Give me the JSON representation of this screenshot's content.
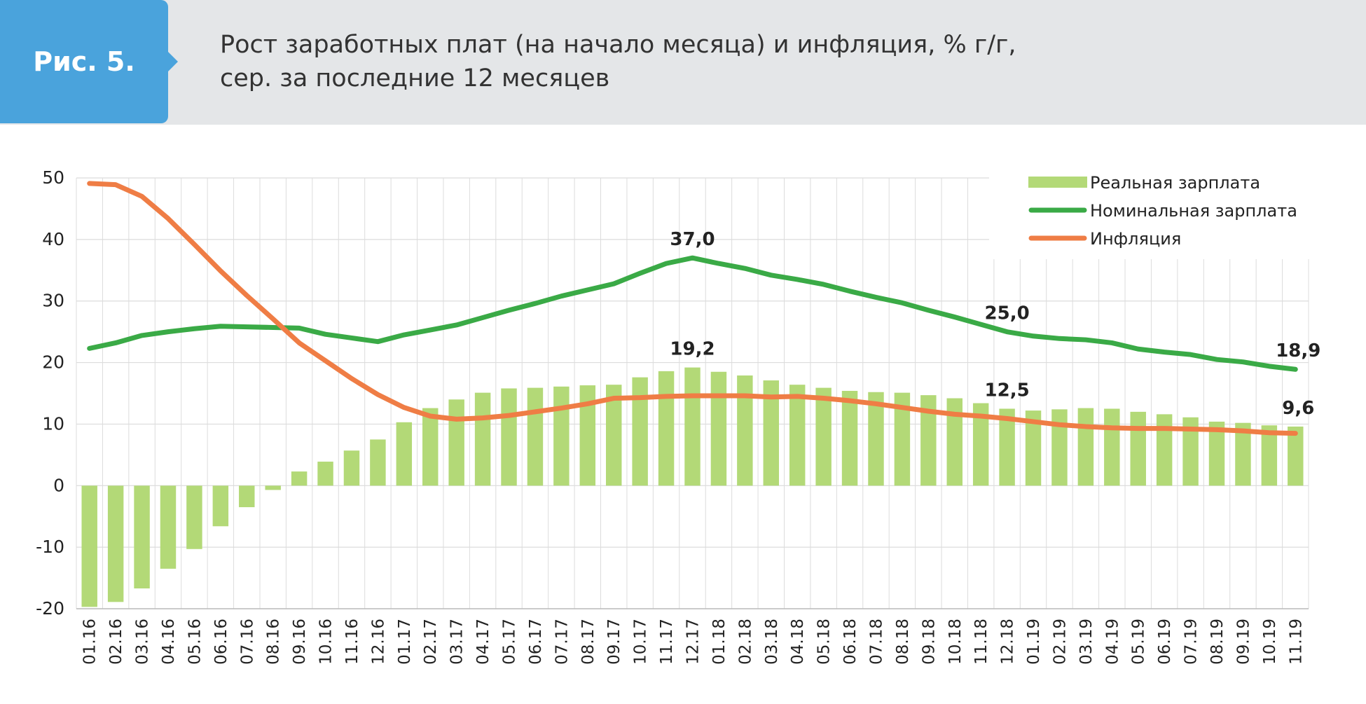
{
  "header": {
    "figure_label": "Рис. 5."
  },
  "chart_data": {
    "type": "bar-line",
    "title_lines": [
      "Рост заработных плат (на начало месяца) и инфляция, % г/г,",
      "сер. за последние 12 месяцев"
    ],
    "categories": [
      "01.16",
      "02.16",
      "03.16",
      "04.16",
      "05.16",
      "06.16",
      "07.16",
      "08.16",
      "09.16",
      "10.16",
      "11.16",
      "12.16",
      "01.17",
      "02.17",
      "03.17",
      "04.17",
      "05.17",
      "06.17",
      "07.17",
      "08.17",
      "09.17",
      "10.17",
      "11.17",
      "12.17",
      "01.18",
      "02.18",
      "03.18",
      "04.18",
      "05.18",
      "06.18",
      "07.18",
      "08.18",
      "09.18",
      "10.18",
      "11.18",
      "12.18",
      "01.19",
      "02.19",
      "03.19",
      "04.19",
      "05.19",
      "06.19",
      "07.19",
      "08.19",
      "09.19",
      "10.19",
      "11.19"
    ],
    "ylim": [
      -20,
      50
    ],
    "yticks": [
      -20,
      -10,
      0,
      10,
      20,
      30,
      40,
      50
    ],
    "grid": true,
    "legend": "top-right",
    "series": [
      {
        "name": "Реальная зарплата",
        "kind": "bar",
        "color": "#b3d977",
        "values": [
          -19.7,
          -18.9,
          -16.7,
          -13.5,
          -10.3,
          -6.6,
          -3.5,
          -0.7,
          2.3,
          3.9,
          5.7,
          7.5,
          10.3,
          12.6,
          14.0,
          15.1,
          15.8,
          15.9,
          16.1,
          16.3,
          16.4,
          17.6,
          18.6,
          19.2,
          18.5,
          17.9,
          17.1,
          16.4,
          15.9,
          15.4,
          15.2,
          15.1,
          14.7,
          14.2,
          13.4,
          12.5,
          12.2,
          12.4,
          12.6,
          12.5,
          12.0,
          11.6,
          11.1,
          10.4,
          10.2,
          9.8,
          9.6
        ],
        "value_labels": [
          null,
          null,
          null,
          null,
          null,
          null,
          null,
          null,
          null,
          null,
          null,
          null,
          null,
          null,
          null,
          null,
          null,
          null,
          null,
          null,
          null,
          null,
          null,
          "19,2",
          null,
          null,
          null,
          null,
          null,
          null,
          null,
          null,
          null,
          null,
          null,
          "12,5",
          null,
          null,
          null,
          null,
          null,
          null,
          null,
          null,
          null,
          null,
          "9,6"
        ]
      },
      {
        "name": "Номинальная зарплата",
        "kind": "line",
        "color": "#3aaa46",
        "values": [
          22.3,
          23.2,
          24.4,
          25.0,
          25.5,
          25.9,
          25.8,
          25.7,
          25.6,
          24.6,
          24.0,
          23.4,
          24.5,
          25.3,
          26.1,
          27.3,
          28.5,
          29.6,
          30.8,
          31.8,
          32.8,
          34.5,
          36.1,
          37.0,
          36.1,
          35.3,
          34.2,
          33.5,
          32.7,
          31.6,
          30.6,
          29.7,
          28.5,
          27.4,
          26.2,
          25.0,
          24.3,
          23.9,
          23.7,
          23.2,
          22.2,
          21.7,
          21.3,
          20.5,
          20.1,
          19.4,
          18.9
        ],
        "value_labels": [
          null,
          null,
          null,
          null,
          null,
          null,
          null,
          null,
          null,
          null,
          null,
          null,
          null,
          null,
          null,
          null,
          null,
          null,
          null,
          null,
          null,
          null,
          null,
          "37,0",
          null,
          null,
          null,
          null,
          null,
          null,
          null,
          null,
          null,
          null,
          null,
          "25,0",
          null,
          null,
          null,
          null,
          null,
          null,
          null,
          null,
          null,
          null,
          "18,9"
        ]
      },
      {
        "name": "Инфляция",
        "kind": "line",
        "color": "#ef7d45",
        "values": [
          49.1,
          48.9,
          47.0,
          43.4,
          39.2,
          34.9,
          30.9,
          27.1,
          23.2,
          20.3,
          17.4,
          14.8,
          12.7,
          11.3,
          10.8,
          11.0,
          11.4,
          12.0,
          12.6,
          13.3,
          14.2,
          14.3,
          14.5,
          14.6,
          14.6,
          14.6,
          14.4,
          14.5,
          14.2,
          13.8,
          13.3,
          12.7,
          12.1,
          11.6,
          11.3,
          10.9,
          10.4,
          9.9,
          9.6,
          9.4,
          9.3,
          9.3,
          9.2,
          9.1,
          8.9,
          8.6,
          8.5
        ]
      }
    ]
  }
}
